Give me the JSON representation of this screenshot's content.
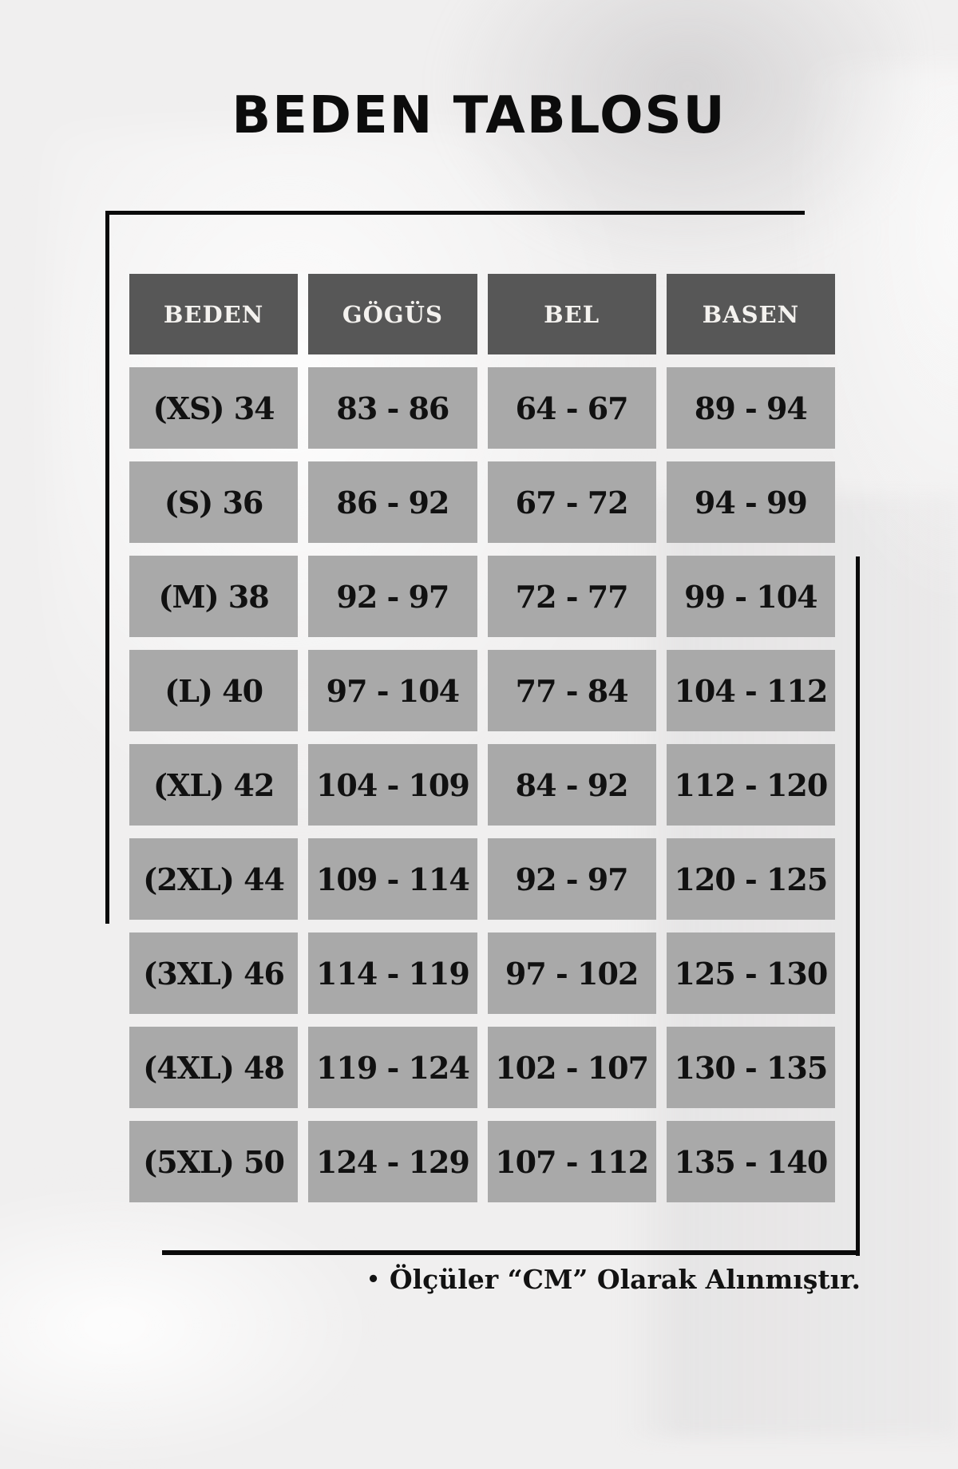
{
  "page": {
    "title": "BEDEN TABLOSU"
  },
  "table": {
    "headers": [
      "BEDEN",
      "GÖGÜS",
      "BEL",
      "BASEN"
    ],
    "rows": [
      [
        "(XS) 34",
        "83 - 86",
        "64 - 67",
        "89 - 94"
      ],
      [
        "(S) 36",
        "86 - 92",
        "67 - 72",
        "94 - 99"
      ],
      [
        "(M) 38",
        "92 - 97",
        "72 - 77",
        "99 - 104"
      ],
      [
        "(L) 40",
        "97 - 104",
        "77 - 84",
        "104 - 112"
      ],
      [
        "(XL) 42",
        "104 - 109",
        "84 - 92",
        "112 - 120"
      ],
      [
        "(2XL) 44",
        "109 - 114",
        "92 - 97",
        "120 - 125"
      ],
      [
        "(3XL) 46",
        "114 - 119",
        "97 - 102",
        "125 - 130"
      ],
      [
        "(4XL) 48",
        "119 - 124",
        "102 - 107",
        "130 - 135"
      ],
      [
        "(5XL) 50",
        "124 - 129",
        "107 - 112",
        "135 - 140"
      ]
    ]
  },
  "footer": {
    "bullet": "•",
    "note": "Ölçüler “CM” Olarak Alınmıştır."
  },
  "colors": {
    "header_bg": "#575757",
    "header_text": "#f4f2ef",
    "cell_bg": "#a9a9a9",
    "cell_text": "#111111",
    "line": "#0a0a0a",
    "background": "#f0efef"
  },
  "chart_data": {
    "type": "table",
    "title": "BEDEN TABLOSU",
    "columns": [
      "BEDEN",
      "GÖGÜS",
      "BEL",
      "BASEN"
    ],
    "rows": [
      [
        "(XS) 34",
        "83 - 86",
        "64 - 67",
        "89 - 94"
      ],
      [
        "(S) 36",
        "86 - 92",
        "67 - 72",
        "94 - 99"
      ],
      [
        "(M) 38",
        "92 - 97",
        "72 - 77",
        "99 - 104"
      ],
      [
        "(L) 40",
        "97 - 104",
        "77 - 84",
        "104 - 112"
      ],
      [
        "(XL) 42",
        "104 - 109",
        "84 - 92",
        "112 - 120"
      ],
      [
        "(2XL) 44",
        "109 - 114",
        "92 - 97",
        "120 - 125"
      ],
      [
        "(3XL) 46",
        "114 - 119",
        "97 - 102",
        "125 - 130"
      ],
      [
        "(4XL) 48",
        "119 - 124",
        "102 - 107",
        "130 - 135"
      ],
      [
        "(5XL) 50",
        "124 - 129",
        "107 - 112",
        "135 - 140"
      ]
    ],
    "note": "Ölçüler “CM” Olarak Alınmıştır.",
    "units": "CM"
  }
}
